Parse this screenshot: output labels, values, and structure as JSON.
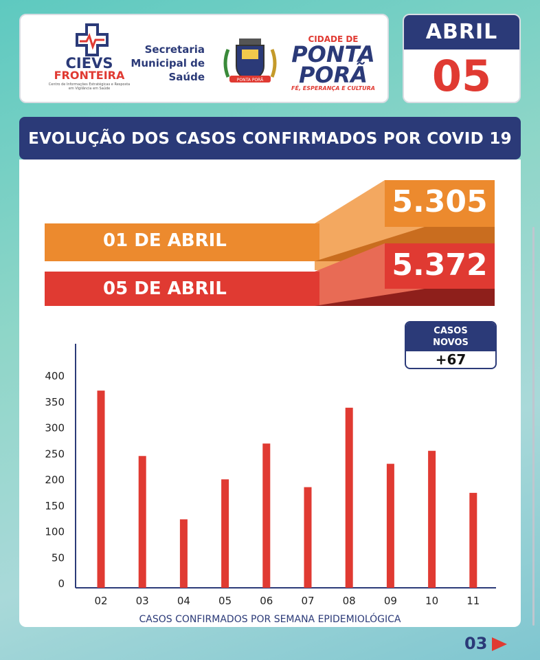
{
  "header": {
    "cievs_name": "CIEVS",
    "cievs_sub": "FRONTEIRA",
    "cievs_tiny": "Centro de Informações Estratégicas e Resposta em Vigilância em Saúde",
    "secretaria": [
      "Secretaria",
      "Municipal de",
      "Saúde"
    ],
    "crest_text": "PONTA PORÃ",
    "city_small": "CIDADE DE",
    "city_line1": "PONTA",
    "city_line2": "PORÃ",
    "city_tagline": "FÉ, ESPERANÇA E CULTURA"
  },
  "date": {
    "month": "ABRIL",
    "day": "05"
  },
  "title": "EVOLUÇÃO DOS CASOS CONFIRMADOS POR COVID 19",
  "comparison": {
    "first_label": "01 DE ABRIL",
    "first_value": "5.305",
    "second_label": "05 DE ABRIL",
    "second_value": "5.372",
    "orange": "#ec8a2e",
    "red": "#e03a32"
  },
  "new_cases": {
    "label_line1": "CASOS",
    "label_line2": "NOVOS",
    "value": "+67"
  },
  "chart_data": {
    "type": "bar",
    "categories": [
      "02",
      "03",
      "04",
      "05",
      "06",
      "07",
      "08",
      "09",
      "10",
      "11"
    ],
    "values": [
      372,
      246,
      124,
      201,
      270,
      186,
      339,
      231,
      256,
      175
    ],
    "xlabel": "CASOS CONFIRMADOS POR SEMANA EPIDEMIOLÓGICA",
    "ylabel": "",
    "ylim": [
      0,
      400
    ],
    "yticks": [
      0,
      50,
      100,
      150,
      200,
      250,
      300,
      350,
      400
    ],
    "bar_color": "#e03a32"
  },
  "page_number": "03"
}
